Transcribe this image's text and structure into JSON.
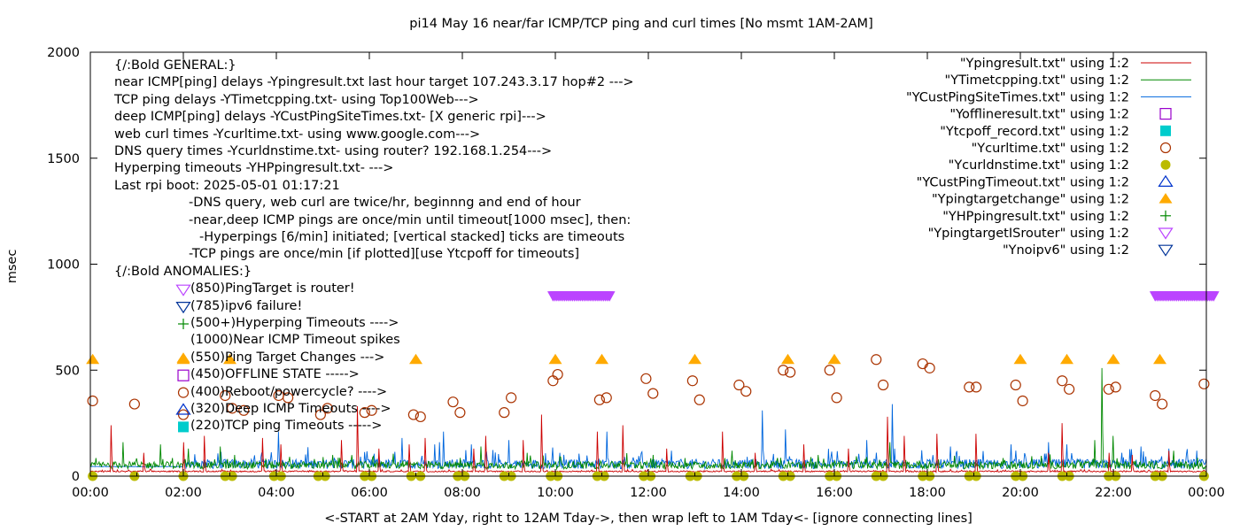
{
  "chart_data": {
    "type": "scatter",
    "title": "pi14 May 16  near/far ICMP/TCP ping and curl times [No msmt 1AM-2AM]",
    "xlabel": "<-START at 2AM Yday, right to 12AM Tday->, then wrap left to 1AM Tday<- [ignore connecting lines]",
    "ylabel": "msec",
    "xlim": [
      0,
      24
    ],
    "ylim": [
      0,
      2000
    ],
    "xticks": [
      "00:00",
      "02:00",
      "04:00",
      "06:00",
      "08:00",
      "10:00",
      "12:00",
      "14:00",
      "16:00",
      "18:00",
      "20:00",
      "22:00",
      "00:00"
    ],
    "yticks": [
      0,
      500,
      1000,
      1500,
      2000
    ],
    "grid": false,
    "legend_position": "top-right",
    "annotations": [
      "{/:Bold GENERAL:}",
      "near ICMP[ping] delays -Ypingresult.txt last hour target 107.243.3.17 hop#2 --->",
      "TCP ping delays -YTimetcpping.txt- using Top100Web--->",
      "deep ICMP[ping] delays -YCustPingSiteTimes.txt- [X generic rpi]--->",
      "web curl times -Ycurltime.txt- using www.google.com--->",
      "DNS query times -Ycurldnstime.txt- using router? 192.168.1.254--->",
      "Hyperping timeouts -YHPpingresult.txt- --->",
      "Last rpi boot: 2025-05-01 01:17:21",
      "-DNS query, web curl are twice/hr, beginnng and end of hour",
      "-near,deep ICMP pings are once/min until timeout[1000 msec], then:",
      "-Hyperpings [6/min] initiated; [vertical stacked] ticks are timeouts",
      "-TCP pings are once/min [if plotted][use Ytcpoff for timeouts]",
      "{/:Bold ANOMALIES:}",
      "(850)PingTarget is router!",
      "(785)ipv6 failure!",
      "(500+)Hyperping Timeouts ---->",
      "(1000)Near ICMP Timeout spikes",
      "(550)Ping Target Changes --->",
      "(450)OFFLINE STATE ----->",
      "(400)Reboot/powercycle? ---->",
      "(320)Deep ICMP Timeouts ---->",
      "(220)TCP ping Timeouts ----->"
    ],
    "series": [
      {
        "name": "\"Ypingresult.txt\" using 1:2",
        "style": "line",
        "color": "#cc0000",
        "baseline": 22,
        "spikes": [
          [
            0.45,
            240
          ],
          [
            1.15,
            110
          ],
          [
            2.0,
            160
          ],
          [
            2.45,
            190
          ],
          [
            3.7,
            180
          ],
          [
            4.1,
            150
          ],
          [
            5.4,
            170
          ],
          [
            5.75,
            330
          ],
          [
            6.2,
            130
          ],
          [
            6.85,
            150
          ],
          [
            7.2,
            180
          ],
          [
            8.25,
            130
          ],
          [
            8.5,
            190
          ],
          [
            9.3,
            170
          ],
          [
            9.7,
            290
          ],
          [
            10.9,
            210
          ],
          [
            11.45,
            240
          ],
          [
            12.4,
            130
          ],
          [
            13.6,
            210
          ],
          [
            14.3,
            110
          ],
          [
            15.35,
            150
          ],
          [
            16.3,
            130
          ],
          [
            17.15,
            280
          ],
          [
            17.5,
            190
          ],
          [
            18.2,
            200
          ],
          [
            19.05,
            200
          ],
          [
            20.6,
            110
          ],
          [
            20.9,
            250
          ],
          [
            21.9,
            110
          ],
          [
            22.4,
            100
          ],
          [
            23.2,
            120
          ]
        ]
      },
      {
        "name": "\"YTimetcpping.txt\" using 1:2",
        "style": "line",
        "color": "#008800",
        "baseline": 50,
        "noise": 35,
        "spikes": [
          [
            0.7,
            160
          ],
          [
            1.5,
            150
          ],
          [
            2.1,
            130
          ],
          [
            2.8,
            140
          ],
          [
            3.1,
            100
          ],
          [
            5.0,
            90
          ],
          [
            8.4,
            140
          ],
          [
            9.4,
            110
          ],
          [
            12.1,
            100
          ],
          [
            13.8,
            120
          ],
          [
            15.5,
            90
          ],
          [
            16.7,
            90
          ],
          [
            17.2,
            160
          ],
          [
            21.6,
            170
          ],
          [
            22.0,
            190
          ],
          [
            21.75,
            510
          ],
          [
            23.3,
            120
          ]
        ]
      },
      {
        "name": "\"YCustPingSiteTimes.txt\" using 1:2",
        "style": "line",
        "color": "#0066dd",
        "baseline": 55,
        "noise": 45,
        "flat_segment": [
          0,
          2,
          45
        ],
        "spikes": [
          [
            4.05,
            210
          ],
          [
            6.7,
            180
          ],
          [
            7.4,
            150
          ],
          [
            7.5,
            160
          ],
          [
            7.6,
            210
          ],
          [
            8.2,
            150
          ],
          [
            9.0,
            170
          ],
          [
            10.1,
            110
          ],
          [
            11.1,
            210
          ],
          [
            12.5,
            120
          ],
          [
            14.45,
            310
          ],
          [
            14.95,
            220
          ],
          [
            16.7,
            170
          ],
          [
            17.25,
            340
          ],
          [
            17.3,
            130
          ],
          [
            18.5,
            140
          ],
          [
            19.8,
            150
          ],
          [
            20.6,
            160
          ],
          [
            21.0,
            150
          ],
          [
            22.6,
            140
          ],
          [
            23.2,
            130
          ],
          [
            23.8,
            120
          ]
        ]
      },
      {
        "name": "\"Yofflineresult.txt\" using 1:2",
        "style": "marker",
        "marker": "open-square",
        "color": "#9900cc",
        "points": []
      },
      {
        "name": "\"Ytcpoff_record.txt\" using 1:2",
        "style": "marker",
        "marker": "filled-square",
        "color": "#00cccc",
        "points": []
      },
      {
        "name": "\"Ycurltime.txt\" using 1:2",
        "style": "marker",
        "marker": "open-circle",
        "color": "#aa3300",
        "points": [
          [
            0.05,
            355
          ],
          [
            0.95,
            340
          ],
          [
            2.0,
            290
          ],
          [
            2.9,
            380
          ],
          [
            3.05,
            320
          ],
          [
            3.3,
            310
          ],
          [
            4.05,
            380
          ],
          [
            4.25,
            370
          ],
          [
            4.95,
            290
          ],
          [
            5.1,
            320
          ],
          [
            5.9,
            300
          ],
          [
            6.05,
            310
          ],
          [
            6.95,
            290
          ],
          [
            7.1,
            280
          ],
          [
            7.8,
            350
          ],
          [
            7.95,
            300
          ],
          [
            8.9,
            300
          ],
          [
            9.05,
            370
          ],
          [
            9.95,
            450
          ],
          [
            10.05,
            480
          ],
          [
            10.95,
            360
          ],
          [
            11.1,
            370
          ],
          [
            11.95,
            460
          ],
          [
            12.1,
            390
          ],
          [
            12.95,
            450
          ],
          [
            13.1,
            360
          ],
          [
            13.95,
            430
          ],
          [
            14.1,
            400
          ],
          [
            14.9,
            500
          ],
          [
            15.05,
            490
          ],
          [
            15.9,
            500
          ],
          [
            16.05,
            370
          ],
          [
            16.9,
            550
          ],
          [
            17.05,
            430
          ],
          [
            17.9,
            530
          ],
          [
            18.05,
            510
          ],
          [
            18.9,
            420
          ],
          [
            19.05,
            420
          ],
          [
            19.9,
            430
          ],
          [
            20.05,
            355
          ],
          [
            20.9,
            450
          ],
          [
            21.05,
            410
          ],
          [
            21.9,
            410
          ],
          [
            22.05,
            420
          ],
          [
            22.9,
            380
          ],
          [
            23.05,
            340
          ],
          [
            23.95,
            435
          ]
        ]
      },
      {
        "name": "\"Ycurldnstime.txt\" using 1:2",
        "style": "marker",
        "marker": "filled-circle",
        "color": "#bbbb00",
        "points": [
          [
            0.05,
            0
          ],
          [
            0.95,
            0
          ],
          [
            2.0,
            0
          ],
          [
            2.9,
            0
          ],
          [
            3.05,
            0
          ],
          [
            3.95,
            0
          ],
          [
            4.1,
            0
          ],
          [
            4.9,
            0
          ],
          [
            5.05,
            0
          ],
          [
            5.9,
            0
          ],
          [
            6.05,
            0
          ],
          [
            6.9,
            0
          ],
          [
            7.1,
            0
          ],
          [
            7.9,
            0
          ],
          [
            8.05,
            0
          ],
          [
            8.9,
            0
          ],
          [
            9.05,
            0
          ],
          [
            9.9,
            0
          ],
          [
            10.05,
            0
          ],
          [
            10.9,
            0
          ],
          [
            11.05,
            0
          ],
          [
            11.9,
            0
          ],
          [
            12.05,
            0
          ],
          [
            12.9,
            0
          ],
          [
            13.05,
            0
          ],
          [
            13.9,
            0
          ],
          [
            14.05,
            0
          ],
          [
            14.9,
            0
          ],
          [
            15.05,
            0
          ],
          [
            15.9,
            0
          ],
          [
            16.05,
            0
          ],
          [
            16.9,
            0
          ],
          [
            17.05,
            0
          ],
          [
            17.9,
            0
          ],
          [
            18.05,
            0
          ],
          [
            18.9,
            0
          ],
          [
            19.05,
            0
          ],
          [
            19.9,
            0
          ],
          [
            20.05,
            0
          ],
          [
            20.9,
            0
          ],
          [
            21.05,
            0
          ],
          [
            21.9,
            0
          ],
          [
            22.05,
            0
          ],
          [
            22.9,
            0
          ],
          [
            23.05,
            0
          ],
          [
            23.95,
            0
          ]
        ]
      },
      {
        "name": "\"YCustPingTimeout.txt\" using 1:2",
        "style": "marker",
        "marker": "open-triangle-up",
        "color": "#0033cc",
        "points": []
      },
      {
        "name": "\"Ypingtargetchange\" using 1:2",
        "style": "marker",
        "marker": "filled-triangle-up",
        "color": "#ffaa00",
        "points": [
          [
            0.05,
            550
          ],
          [
            2.0,
            550
          ],
          [
            3.0,
            550
          ],
          [
            7.0,
            550
          ],
          [
            10.0,
            550
          ],
          [
            11.0,
            550
          ],
          [
            13.0,
            550
          ],
          [
            15.0,
            550
          ],
          [
            16.0,
            550
          ],
          [
            20.0,
            550
          ],
          [
            21.0,
            550
          ],
          [
            22.0,
            550
          ],
          [
            23.0,
            550
          ]
        ]
      },
      {
        "name": "\"YHPpingresult.txt\" using 1:2",
        "style": "marker",
        "marker": "plus",
        "color": "#008800",
        "points": []
      },
      {
        "name": "\"YpingtargetISrouter\" using 1:2",
        "style": "marker",
        "marker": "open-triangle-down",
        "color": "#bb44ff",
        "band_ranges": [
          [
            9.95,
            11.2,
            850
          ],
          [
            22.9,
            24.2,
            850
          ]
        ]
      },
      {
        "name": "\"Ynoipv6\" using 1:2",
        "style": "marker",
        "marker": "open-triangle-down",
        "color": "#003399",
        "points": []
      }
    ]
  }
}
